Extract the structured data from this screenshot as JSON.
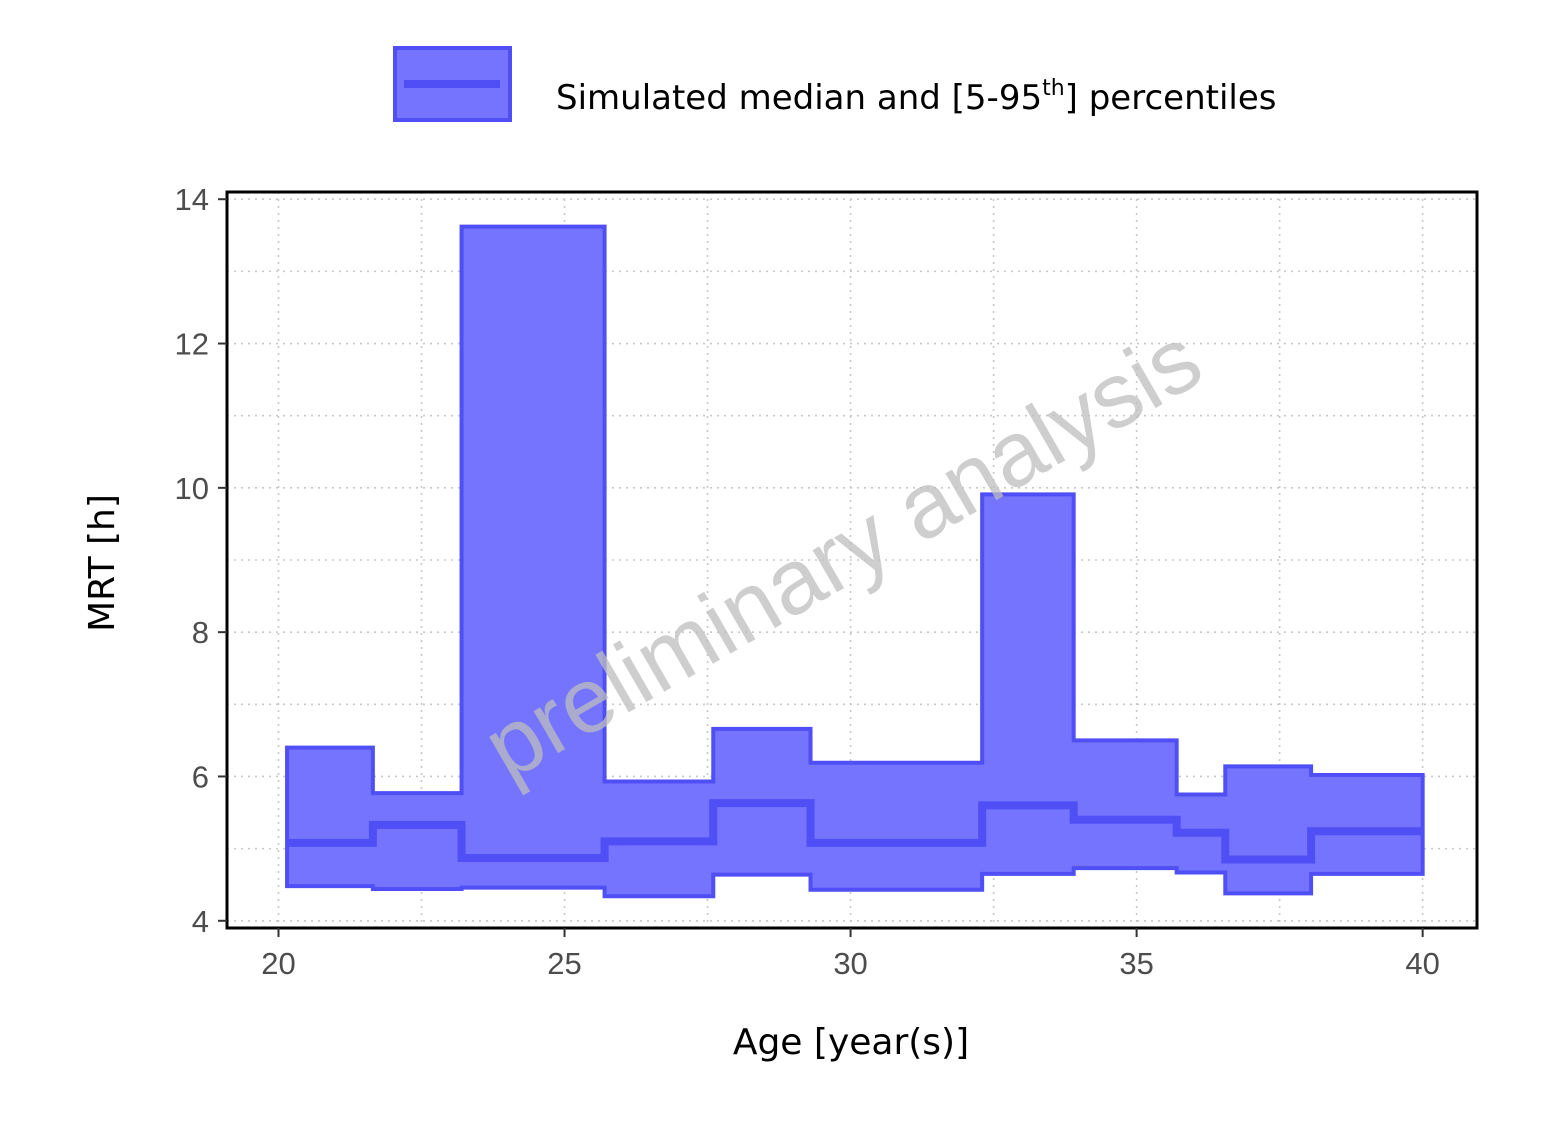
{
  "chart_data": {
    "type": "area",
    "title": "",
    "xlabel": "Age [year(s)]",
    "ylabel": "MRT [h]",
    "xlim": [
      19.1,
      40.95
    ],
    "ylim": [
      3.9,
      14.1
    ],
    "x_ticks": [
      20,
      25,
      30,
      35,
      40
    ],
    "y_ticks": [
      4,
      6,
      8,
      10,
      12,
      14
    ],
    "grid": true,
    "legend": {
      "position": "top",
      "label": "Simulated median and [5-95",
      "label_sup": "th",
      "label_end": "] percentiles"
    },
    "watermark": "preliminary analysis",
    "bins": [
      {
        "x0": 20.15,
        "x1": 21.65,
        "p5": 4.48,
        "median": 5.08,
        "p95": 6.4
      },
      {
        "x0": 21.65,
        "x1": 23.2,
        "p5": 4.44,
        "median": 5.33,
        "p95": 5.77
      },
      {
        "x0": 23.2,
        "x1": 25.7,
        "p5": 4.46,
        "median": 4.87,
        "p95": 13.62
      },
      {
        "x0": 25.7,
        "x1": 27.6,
        "p5": 4.34,
        "median": 5.1,
        "p95": 5.93
      },
      {
        "x0": 27.6,
        "x1": 29.3,
        "p5": 4.64,
        "median": 5.63,
        "p95": 6.66
      },
      {
        "x0": 29.3,
        "x1": 32.3,
        "p5": 4.43,
        "median": 5.08,
        "p95": 6.19
      },
      {
        "x0": 32.3,
        "x1": 33.9,
        "p5": 4.65,
        "median": 5.6,
        "p95": 9.91
      },
      {
        "x0": 33.9,
        "x1": 35.7,
        "p5": 4.73,
        "median": 5.4,
        "p95": 6.5
      },
      {
        "x0": 35.7,
        "x1": 36.55,
        "p5": 4.67,
        "median": 5.22,
        "p95": 5.75
      },
      {
        "x0": 36.55,
        "x1": 38.05,
        "p5": 4.38,
        "median": 4.85,
        "p95": 6.14
      },
      {
        "x0": 38.05,
        "x1": 40.0,
        "p5": 4.65,
        "median": 5.24,
        "p95": 6.02
      }
    ],
    "colors": {
      "band_fill": "#7474ff",
      "line": "#4f4ff5",
      "grid": "#c8c8c8",
      "axis": "#000000"
    }
  }
}
